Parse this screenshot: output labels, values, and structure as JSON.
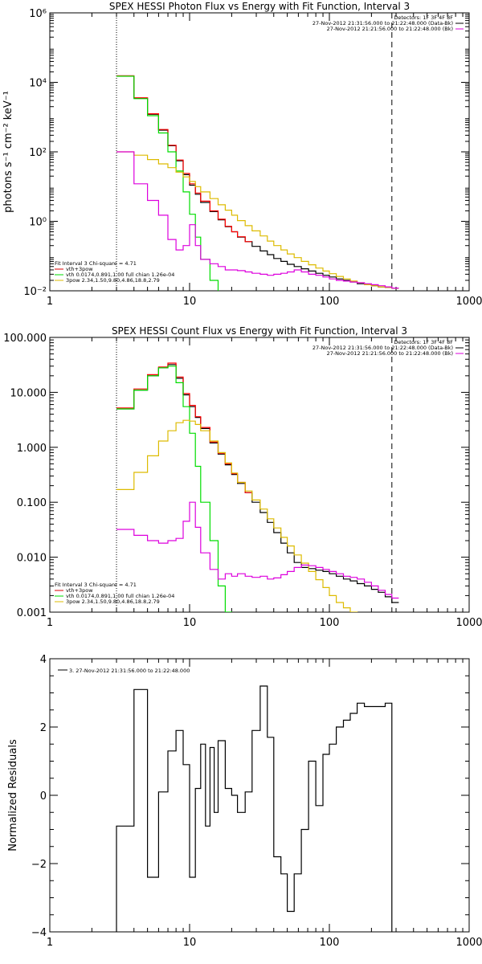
{
  "chart_data": [
    {
      "type": "line",
      "title": "SPEX HESSI Photon Flux vs Energy with Fit Function, Interval 3",
      "ylabel": "photons s⁻¹ cm⁻² keV⁻¹",
      "xscale": "log",
      "yscale": "log",
      "xlim": [
        1,
        1000
      ],
      "ylim": [
        0.01,
        1000000
      ],
      "xticks": [
        "1",
        "10",
        "100",
        "1000"
      ],
      "yticks": [
        {
          "value": 0.01,
          "label": "10⁻²"
        },
        {
          "value": 1,
          "label": "10⁰"
        },
        {
          "value": 100,
          "label": "10²"
        },
        {
          "value": 10000,
          "label": "10⁴"
        },
        {
          "value": 1000000,
          "label": "10⁶"
        }
      ],
      "legend_top_right": [
        "Detectors: 1F 3F 4F 8F",
        "27-Nov-2012 21:31:56.000 to 21:22:48.000 (Data-Bk)",
        "27-Nov-2012 21:21:56.000 to 21:22:48.000 (Bk)"
      ],
      "legend_bottom_left": [
        "Fit Interval 3   Chi-square = 4.71",
        "vth+3pow",
        "vth 0.0174,0.891,1.00  full chian 1.26e-04",
        "3pow 2.34,1.50,9.80,4.86,18.8,2.79"
      ],
      "vlines": [
        {
          "x": 3,
          "style": "dotted"
        },
        {
          "x": 280,
          "style": "dashed"
        }
      ],
      "series": [
        {
          "color": "#000000",
          "x": [
            3,
            4,
            5,
            6,
            7,
            8,
            9,
            10,
            11,
            12,
            14,
            16,
            18,
            20,
            22,
            25,
            28,
            32,
            36,
            40,
            45,
            50,
            56,
            63,
            71,
            80,
            90,
            100,
            112,
            126,
            141,
            158,
            178,
            200,
            224,
            251,
            280
          ],
          "y": [
            15000,
            3500,
            1200,
            420,
            150,
            55,
            22,
            11,
            6,
            3.5,
            1.9,
            1.1,
            0.7,
            0.5,
            0.35,
            0.26,
            0.19,
            0.14,
            0.11,
            0.085,
            0.07,
            0.058,
            0.05,
            0.043,
            0.037,
            0.032,
            0.028,
            0.025,
            0.022,
            0.02,
            0.018,
            0.016,
            0.015,
            0.014,
            0.013,
            0.0125,
            0.012
          ]
        },
        {
          "color": "#ff0000",
          "x": [
            3,
            4,
            5,
            6,
            7,
            8,
            9,
            10,
            11,
            12,
            14,
            16,
            18,
            20,
            22,
            25
          ],
          "y": [
            15500,
            3600,
            1250,
            440,
            155,
            58,
            24,
            12,
            6.5,
            3.8,
            2.0,
            1.15,
            0.72,
            0.5,
            0.36,
            0.26
          ]
        },
        {
          "color": "#00dd00",
          "x": [
            3,
            4,
            5,
            6,
            7,
            8,
            9,
            10,
            11,
            12,
            14,
            16
          ],
          "y": [
            15000,
            3400,
            1100,
            350,
            100,
            28,
            7,
            1.6,
            0.35,
            0.08,
            0.02,
            0.004
          ]
        },
        {
          "color": "#ddbb00",
          "x": [
            3,
            4,
            5,
            6,
            7,
            8,
            9,
            10,
            11,
            12,
            14,
            16,
            18,
            20,
            22,
            25,
            28,
            32,
            36,
            40,
            45,
            50,
            56,
            63,
            71,
            80,
            90,
            100,
            112,
            126,
            141,
            158,
            178,
            200,
            224,
            251,
            280
          ],
          "y": [
            100,
            80,
            60,
            45,
            35,
            26,
            19,
            14,
            10,
            7,
            4.5,
            3,
            2.1,
            1.5,
            1.05,
            0.75,
            0.53,
            0.38,
            0.27,
            0.2,
            0.15,
            0.115,
            0.09,
            0.07,
            0.056,
            0.045,
            0.037,
            0.031,
            0.026,
            0.022,
            0.019,
            0.017,
            0.015,
            0.014,
            0.013,
            0.0125,
            0.012
          ]
        },
        {
          "color": "#dd00dd",
          "x": [
            3,
            4,
            5,
            6,
            7,
            8,
            9,
            10,
            11,
            12,
            14,
            16,
            18,
            20,
            22,
            25,
            28,
            32,
            36,
            40,
            45,
            50,
            56,
            63,
            71,
            80,
            90,
            100,
            112,
            126,
            141,
            158,
            178,
            200,
            224,
            251,
            280
          ],
          "y": [
            100,
            12,
            4,
            1.5,
            0.3,
            0.15,
            0.2,
            0.8,
            0.2,
            0.08,
            0.06,
            0.05,
            0.04,
            0.04,
            0.038,
            0.035,
            0.032,
            0.03,
            0.028,
            0.03,
            0.032,
            0.035,
            0.04,
            0.035,
            0.03,
            0.028,
            0.025,
            0.022,
            0.02,
            0.019,
            0.018,
            0.017,
            0.016,
            0.015,
            0.014,
            0.013,
            0.012
          ]
        }
      ]
    },
    {
      "type": "line",
      "title": "SPEX HESSI Count Flux vs Energy with Fit Function, Interval 3",
      "ylabel": "",
      "xscale": "log",
      "yscale": "log",
      "xlim": [
        1,
        1000
      ],
      "ylim": [
        0.001,
        100
      ],
      "xticks": [
        "1",
        "10",
        "100",
        "1000"
      ],
      "yticks": [
        {
          "value": 0.001,
          "label": "0.001"
        },
        {
          "value": 0.01,
          "label": "0.010"
        },
        {
          "value": 0.1,
          "label": "0.100"
        },
        {
          "value": 1,
          "label": "1.000"
        },
        {
          "value": 10,
          "label": "10.000"
        },
        {
          "value": 100,
          "label": "100.000"
        }
      ],
      "legend_top_right": [
        "Detectors: 1F 3F 4F 8F",
        "27-Nov-2012 21:31:56.000 to 21:22:48.000 (Data-Bk)",
        "27-Nov-2012 21:21:56.000 to 21:22:48.000 (Bk)"
      ],
      "legend_bottom_left": [
        "Fit Interval 3   Chi-square = 4.71",
        "vth+3pow",
        "vth 0.0174,0.891,1.00  full chian 1.26e-04",
        "3pow 2.34,1.50,9.80,4.86,18.8,2.79"
      ],
      "vlines": [
        {
          "x": 3,
          "style": "dotted"
        },
        {
          "x": 280,
          "style": "dashed"
        }
      ],
      "series": [
        {
          "color": "#000000",
          "x": [
            3,
            4,
            5,
            6,
            7,
            8,
            9,
            10,
            11,
            12,
            14,
            16,
            18,
            20,
            22,
            25,
            28,
            32,
            36,
            40,
            45,
            50,
            56,
            63,
            71,
            80,
            90,
            100,
            112,
            126,
            141,
            158,
            178,
            200,
            224,
            251,
            280
          ],
          "y": [
            5,
            11,
            20,
            28,
            32,
            18,
            9,
            5.5,
            3.5,
            2.2,
            1.2,
            0.75,
            0.48,
            0.32,
            0.22,
            0.15,
            0.1,
            0.065,
            0.043,
            0.028,
            0.018,
            0.012,
            0.008,
            0.0065,
            0.0062,
            0.0058,
            0.0055,
            0.005,
            0.0045,
            0.004,
            0.0037,
            0.0033,
            0.003,
            0.0026,
            0.0023,
            0.0019,
            0.0015
          ]
        },
        {
          "color": "#ff0000",
          "x": [
            3,
            4,
            5,
            6,
            7,
            8,
            9,
            10,
            11,
            12,
            14,
            16,
            18,
            20,
            22,
            25
          ],
          "y": [
            5.2,
            11.5,
            21,
            29,
            34,
            19,
            9.5,
            5.8,
            3.6,
            2.3,
            1.25,
            0.78,
            0.5,
            0.33,
            0.23,
            0.15
          ]
        },
        {
          "color": "#00dd00",
          "x": [
            3,
            4,
            5,
            6,
            7,
            8,
            9,
            10,
            11,
            12,
            14,
            16,
            18
          ],
          "y": [
            5,
            11,
            20,
            28,
            30,
            15,
            5.5,
            1.8,
            0.45,
            0.1,
            0.02,
            0.003,
            0.001
          ]
        },
        {
          "color": "#ddbb00",
          "x": [
            3,
            4,
            5,
            6,
            7,
            8,
            9,
            10,
            11,
            12,
            14,
            16,
            18,
            20,
            22,
            25,
            28,
            32,
            36,
            40,
            45,
            50,
            56,
            63,
            71,
            80,
            90,
            100,
            112,
            126,
            141,
            158
          ],
          "y": [
            0.17,
            0.35,
            0.7,
            1.3,
            2.0,
            2.8,
            3.1,
            3.0,
            2.6,
            2.0,
            1.3,
            0.8,
            0.52,
            0.34,
            0.23,
            0.16,
            0.11,
            0.075,
            0.05,
            0.034,
            0.023,
            0.016,
            0.011,
            0.0078,
            0.0055,
            0.0039,
            0.0028,
            0.002,
            0.0015,
            0.0012,
            0.001,
            0.0008
          ]
        },
        {
          "color": "#dd00dd",
          "x": [
            3,
            4,
            5,
            6,
            7,
            8,
            9,
            10,
            11,
            12,
            14,
            16,
            18,
            20,
            22,
            25,
            28,
            32,
            36,
            40,
            45,
            50,
            56,
            63,
            71,
            80,
            90,
            100,
            112,
            126,
            141,
            158,
            178,
            200,
            224,
            251,
            280
          ],
          "y": [
            0.032,
            0.025,
            0.02,
            0.018,
            0.02,
            0.022,
            0.045,
            0.1,
            0.035,
            0.012,
            0.006,
            0.004,
            0.005,
            0.0045,
            0.005,
            0.0045,
            0.0043,
            0.0045,
            0.004,
            0.0042,
            0.0048,
            0.0055,
            0.0065,
            0.0072,
            0.007,
            0.0065,
            0.006,
            0.0055,
            0.005,
            0.0045,
            0.0043,
            0.004,
            0.0035,
            0.003,
            0.0025,
            0.0021,
            0.0018
          ]
        }
      ]
    },
    {
      "type": "line",
      "title": "",
      "ylabel": "Normalized Residuals",
      "xscale": "log",
      "yscale": "linear",
      "xlim": [
        1,
        1000
      ],
      "ylim": [
        -4,
        4
      ],
      "xticks": [
        "1",
        "10",
        "100",
        "1000"
      ],
      "yticks": [
        {
          "value": -4,
          "label": "−4"
        },
        {
          "value": -2,
          "label": "−2"
        },
        {
          "value": 0,
          "label": "0"
        },
        {
          "value": 2,
          "label": "2"
        },
        {
          "value": 4,
          "label": "4"
        }
      ],
      "legend_top_left": [
        "3. 27-Nov-2012 21:31:56.000 to 21:22:48.000"
      ],
      "series": [
        {
          "color": "#000000",
          "edges": [
            3,
            4,
            5,
            6,
            7,
            8,
            9,
            10,
            11,
            12,
            13,
            14,
            15,
            16,
            18,
            20,
            22,
            25,
            28,
            32,
            36,
            40,
            45,
            50,
            56,
            63,
            71,
            80,
            90,
            100,
            112,
            126,
            141,
            158,
            178,
            200,
            224,
            251,
            280
          ],
          "values": [
            -0.9,
            3.1,
            -2.4,
            0.1,
            1.3,
            1.9,
            0.9,
            -2.4,
            0.2,
            1.5,
            -0.9,
            1.4,
            -0.5,
            1.6,
            0.2,
            0,
            -0.5,
            0.1,
            1.9,
            3.2,
            1.7,
            -1.8,
            -2.3,
            -3.4,
            -2.3,
            -1.0,
            1.0,
            -0.3,
            1.2,
            1.5,
            2.0,
            2.2,
            2.4,
            2.7,
            2.6,
            2.6,
            2.6,
            2.7
          ]
        }
      ]
    }
  ]
}
